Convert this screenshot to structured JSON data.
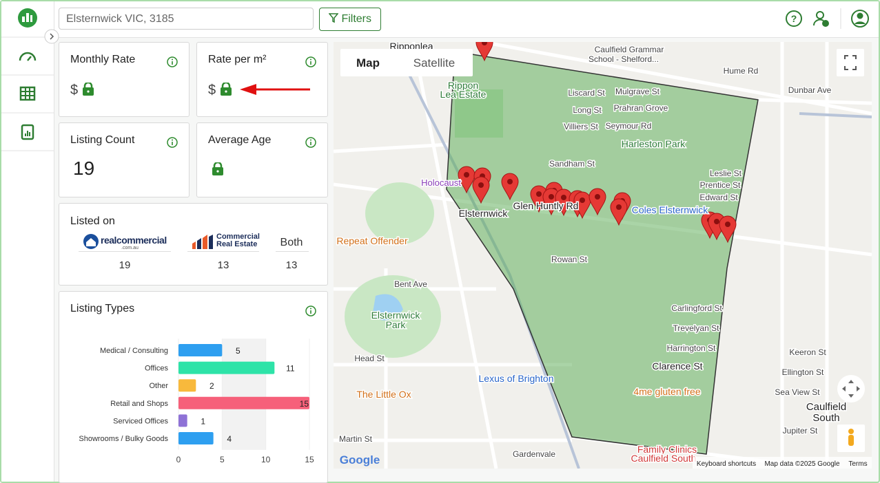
{
  "header": {
    "search": "Elsternwick VIC, 3185",
    "filters": "Filters"
  },
  "cards": {
    "monthly_rate": {
      "title": "Monthly Rate",
      "currency": "$"
    },
    "rate_per_m2": {
      "title": "Rate per m²",
      "currency": "$"
    },
    "listing_count": {
      "title": "Listing Count",
      "value": 19
    },
    "average_age": {
      "title": "Average Age"
    }
  },
  "listed_on": {
    "title": "Listed on",
    "sources": [
      {
        "name": "realcommercial",
        "sub": ".com.au",
        "count": 19
      },
      {
        "line1": "Commercial",
        "line2": "Real Estate",
        "count": 13
      },
      {
        "name": "Both",
        "count": 13
      }
    ]
  },
  "chart_data": {
    "type": "bar",
    "orientation": "horizontal",
    "title": "Listing Types",
    "categories": [
      "Medical / Consulting",
      "Offices",
      "Other",
      "Retail and Shops",
      "Serviced Offices",
      "Showrooms / Bulky Goods"
    ],
    "values": [
      5,
      11,
      2,
      15,
      1,
      4
    ],
    "colors": [
      "#2e9ff0",
      "#2ee3a8",
      "#f8b93c",
      "#f6607a",
      "#8e72d6",
      "#2e9ff0"
    ],
    "xlim": [
      0,
      15
    ],
    "xticks": [
      0,
      5,
      10,
      15
    ]
  },
  "map": {
    "tabs": [
      "Map",
      "Satellite"
    ],
    "labels": [
      "Ripponlea",
      "Caulfield Grammar",
      "School - Shelford...",
      "Hume Rd",
      "Dunbar Ave",
      "Rippon",
      "Lea Estate",
      "Liscard St",
      "Mulgrave St",
      "Prahran Grove",
      "Long St",
      "Villiers St",
      "Seymour Rd",
      "Harleston Park",
      "Sandham St",
      "Leslie St",
      "Prentice St",
      "Edward St",
      "Holocaust",
      "Glen Huntly Rd",
      "Coles Elsternwick",
      "Elsternwick",
      "Repeat Offender",
      "Rowan St",
      "Bent Ave",
      "Elsternwick",
      "Park",
      "Carlingford St",
      "Trevelyan St",
      "Harrington St",
      "Keeron St",
      "Head St",
      "Clarence St",
      "Ellington St",
      "Lexus of Brighton",
      "4me gluten free",
      "Sea View St",
      "The Little Ox",
      "Caulfield",
      "South",
      "Jupiter St",
      "Martin St",
      "Family Clinics",
      "Caulfield South",
      "Gardenvale"
    ],
    "logo": "Google",
    "shortcuts": "Keyboard shortcuts",
    "attribution": "Map data ©2025 Google",
    "terms": "Terms"
  }
}
